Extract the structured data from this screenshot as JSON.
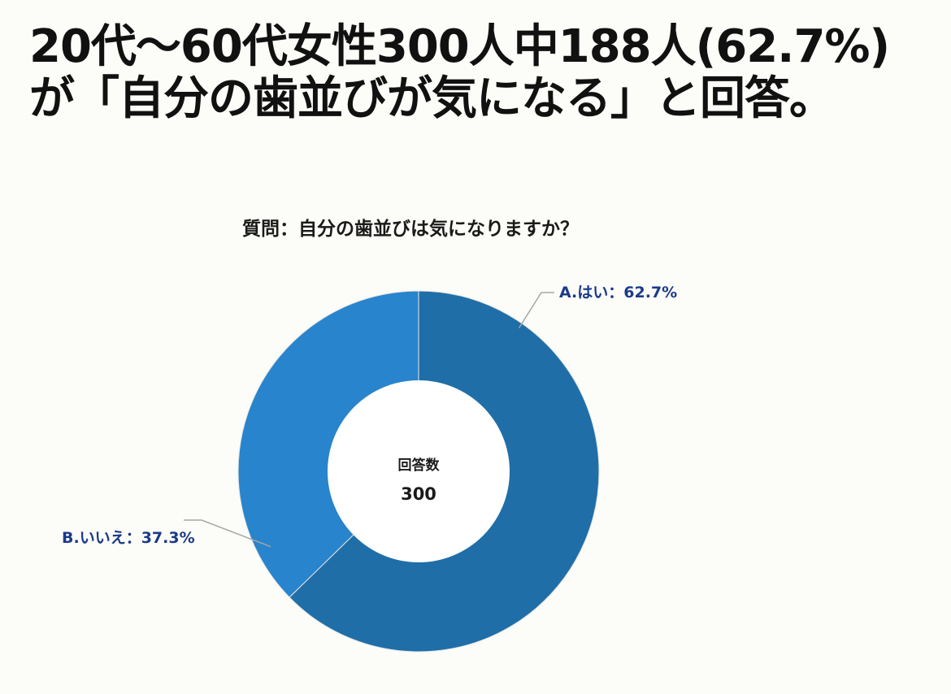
{
  "header": {
    "line1": "20代〜60代女性300人中188人(62.7%)",
    "line2": "が「自分の歯並びが気になる」と回答。"
  },
  "chart_data": {
    "type": "pie",
    "title": "質問：自分の歯並びは気になりますか？",
    "center_label": "回答数",
    "center_value": "300",
    "slices": [
      {
        "name": "A.はい",
        "value": 62.7,
        "label": "A.はい：62.7%",
        "color": "#1f6ea8"
      },
      {
        "name": "B.いいえ",
        "value": 37.3,
        "label": "B.いいえ：37.3%",
        "color": "#2884cc"
      }
    ]
  },
  "colors": {
    "label_text": "#1b3a8a",
    "leader_line": "#a6a6a6",
    "slice_border": "#e6e6e6",
    "hole": "#ffffff"
  }
}
